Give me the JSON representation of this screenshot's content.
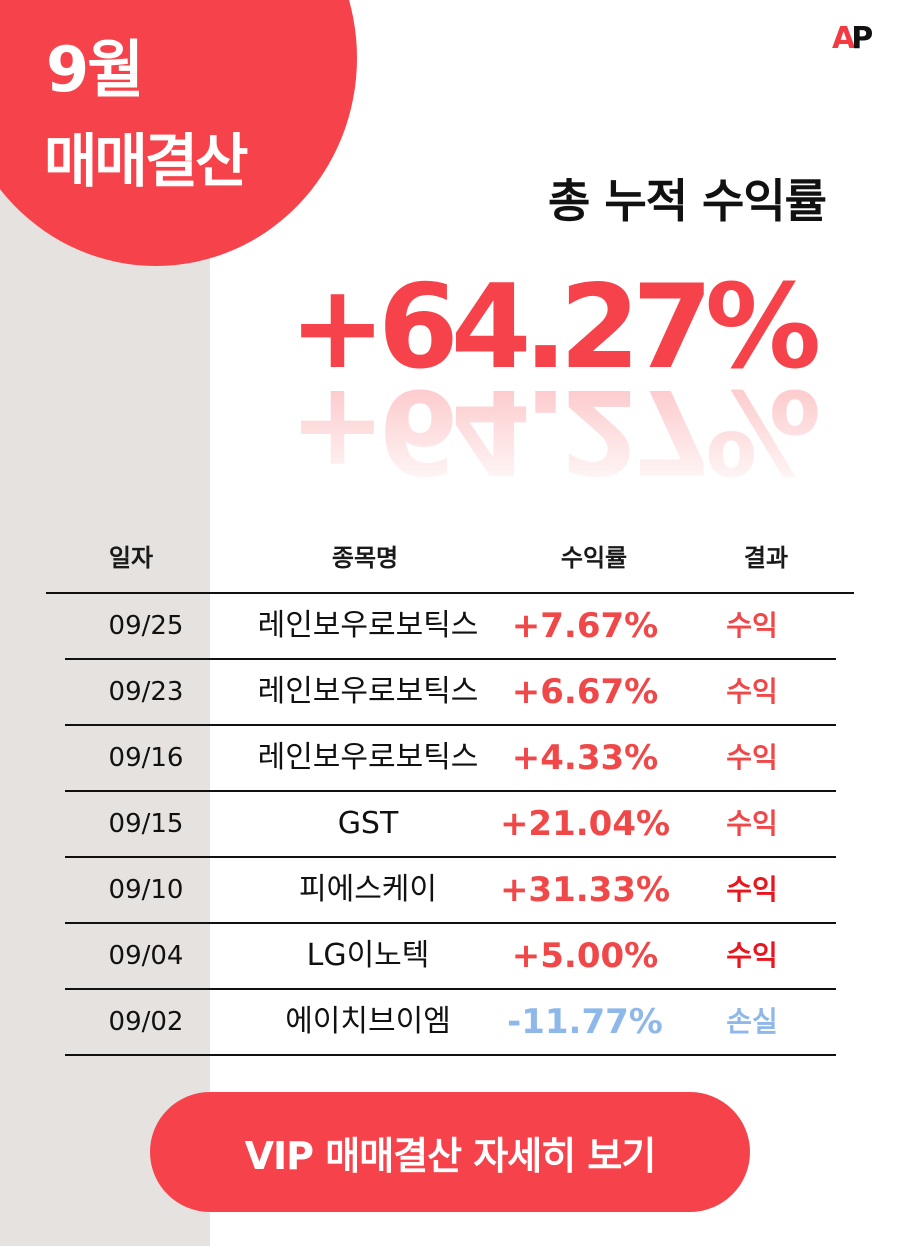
{
  "badge": {
    "month": "9월",
    "title": "매매결산"
  },
  "logo": {
    "a": "A",
    "p": "P"
  },
  "headline": "총 누적 수익률",
  "total_rate": "+64.27%",
  "table": {
    "headers": {
      "date": "일자",
      "name": "종목명",
      "rate": "수익률",
      "result": "결과"
    },
    "rows": [
      {
        "date": "09/25",
        "name": "레인보우로보틱스",
        "rate": "+7.67%",
        "result": "수익"
      },
      {
        "date": "09/23",
        "name": "레인보우로보틱스",
        "rate": "+6.67%",
        "result": "수익"
      },
      {
        "date": "09/16",
        "name": "레인보우로보틱스",
        "rate": "+4.33%",
        "result": "수익"
      },
      {
        "date": "09/15",
        "name": "GST",
        "rate": "+21.04%",
        "result": "수익"
      },
      {
        "date": "09/10",
        "name": "피에스케이",
        "rate": "+31.33%",
        "result": "수익"
      },
      {
        "date": "09/04",
        "name": "LG이노텍",
        "rate": "+5.00%",
        "result": "수익"
      },
      {
        "date": "09/02",
        "name": "에이치브이엠",
        "rate": "-11.77%",
        "result": "손실"
      }
    ]
  },
  "cta": {
    "label": "VIP 매매결산 자세히 보기"
  },
  "colors": {
    "accent": "#f6434b",
    "profit_text": "#f04848",
    "profit_strong": "#e8161e",
    "loss_text": "#8fb8ea",
    "side_bg": "#e6e2df"
  }
}
